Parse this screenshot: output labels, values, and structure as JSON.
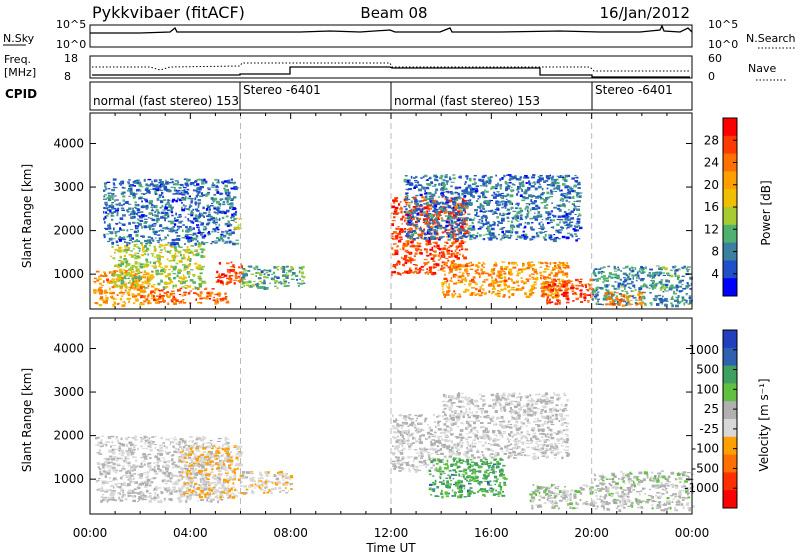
{
  "header": {
    "station": "Pykkvibaer (fitACF)",
    "beam": "Beam 08",
    "date": "16/Jan/2012"
  },
  "nsky_panel": {
    "label": "N.Sky",
    "yticks": [
      "10^5",
      "10^0"
    ],
    "right_ticks": [
      "10^5",
      "10^0"
    ],
    "right_label": "N.Search"
  },
  "freq_panel": {
    "label_line1": "Freq.",
    "label_line2": "[MHz]",
    "yticks": [
      "18",
      "8"
    ],
    "right_ticks": [
      "60",
      "0"
    ],
    "right_label": "Nave"
  },
  "cpid_panel": {
    "label": "CPID",
    "modes": [
      {
        "name": "normal (fast stereo) 153",
        "start": "00:00",
        "end": "06:00"
      },
      {
        "name": "Stereo -6401",
        "start": "06:00",
        "end": "12:00"
      },
      {
        "name": "normal (fast stereo) 153",
        "start": "12:00",
        "end": "20:00"
      },
      {
        "name": "Stereo -6401",
        "start": "20:00",
        "end": "24:00"
      }
    ]
  },
  "power_panel": {
    "ylabel": "Slant Range [km]",
    "cbar_label": "Power [dB]",
    "cbar_ticks": [
      "28",
      "24",
      "20",
      "16",
      "12",
      "8",
      "4"
    ],
    "cbar_colors": [
      "#ff0000",
      "#ff3a00",
      "#ff7000",
      "#ffa000",
      "#f0c000",
      "#a8cc30",
      "#50b070",
      "#3a80a0",
      "#2050c8",
      "#0000ff"
    ]
  },
  "velocity_panel": {
    "ylabel": "Slant Range [km]",
    "cbar_label": "Velocity [m s⁻¹]",
    "cbar_ticks": [
      "1000",
      "500",
      "100",
      "25",
      "-25",
      "-100",
      "-500",
      "-1000"
    ],
    "cbar_colors": [
      "#2040c0",
      "#3060b0",
      "#40a060",
      "#60c040",
      "#b0b0b0",
      "#d8d8d8",
      "#ffa000",
      "#ff7000",
      "#ff3000",
      "#ff0000"
    ]
  },
  "xaxis": {
    "label": "Time UT",
    "ticks": [
      "00:00",
      "04:00",
      "08:00",
      "12:00",
      "16:00",
      "20:00",
      "00:00"
    ]
  },
  "chart_data": {
    "type": "heatmap",
    "title": "Pykkvibaer (fitACF) Beam 08 16/Jan/2012",
    "x_range_hours": [
      0,
      24
    ],
    "y_range_km": [
      200,
      4700
    ],
    "y_ticks_km": [
      1000,
      2000,
      3000,
      4000
    ],
    "mode_boundaries_hours": [
      6,
      12,
      20
    ],
    "power_range_db": [
      0,
      32
    ],
    "velocity_range_ms": [
      -1000,
      1000
    ],
    "power_regions": [
      {
        "t_start": 0.1,
        "t_end": 2.5,
        "r_min": 300,
        "r_max": 1100,
        "power_db": 22
      },
      {
        "t_start": 2.5,
        "t_end": 5.5,
        "r_min": 350,
        "r_max": 700,
        "power_db": 26
      },
      {
        "t_start": 0.8,
        "t_end": 4.5,
        "r_min": 700,
        "r_max": 1700,
        "power_db": 14
      },
      {
        "t_start": 0.5,
        "t_end": 5.8,
        "r_min": 1700,
        "r_max": 3200,
        "power_db": 6
      },
      {
        "t_start": 5.0,
        "t_end": 6.0,
        "r_min": 800,
        "r_max": 1300,
        "power_db": 28
      },
      {
        "t_start": 5.7,
        "t_end": 6.0,
        "r_min": 2000,
        "r_max": 2300,
        "power_db": 18
      },
      {
        "t_start": 6.0,
        "t_end": 8.5,
        "r_min": 700,
        "r_max": 1200,
        "power_db": 10
      },
      {
        "t_start": 12.0,
        "t_end": 15.0,
        "r_min": 1000,
        "r_max": 2800,
        "power_db": 28
      },
      {
        "t_start": 14.0,
        "t_end": 19.0,
        "r_min": 500,
        "r_max": 1300,
        "power_db": 22
      },
      {
        "t_start": 12.5,
        "t_end": 19.5,
        "r_min": 1800,
        "r_max": 3300,
        "power_db": 6
      },
      {
        "t_start": 18.0,
        "t_end": 20.0,
        "r_min": 350,
        "r_max": 900,
        "power_db": 28
      },
      {
        "t_start": 20.0,
        "t_end": 24.0,
        "r_min": 300,
        "r_max": 1200,
        "power_db": 8
      },
      {
        "t_start": 20.5,
        "t_end": 22.0,
        "r_min": 300,
        "r_max": 600,
        "power_db": 24
      }
    ],
    "velocity_regions": [
      {
        "t_start": 0.2,
        "t_end": 5.5,
        "r_min": 500,
        "r_max": 2000,
        "velocity_ms": 0
      },
      {
        "t_start": 3.5,
        "t_end": 6.0,
        "r_min": 600,
        "r_max": 1800,
        "velocity_ms": -200
      },
      {
        "t_start": 6.0,
        "t_end": 8.0,
        "r_min": 700,
        "r_max": 1200,
        "velocity_ms": -150
      },
      {
        "t_start": 12.0,
        "t_end": 14.0,
        "r_min": 1200,
        "r_max": 2500,
        "velocity_ms": 0
      },
      {
        "t_start": 13.5,
        "t_end": 16.5,
        "r_min": 600,
        "r_max": 1500,
        "velocity_ms": 500
      },
      {
        "t_start": 14.0,
        "t_end": 19.0,
        "r_min": 1500,
        "r_max": 3000,
        "velocity_ms": 0
      },
      {
        "t_start": 17.5,
        "t_end": 20.0,
        "r_min": 350,
        "r_max": 900,
        "velocity_ms": 100
      },
      {
        "t_start": 20.0,
        "t_end": 24.0,
        "r_min": 300,
        "r_max": 1200,
        "velocity_ms": 80
      }
    ]
  }
}
